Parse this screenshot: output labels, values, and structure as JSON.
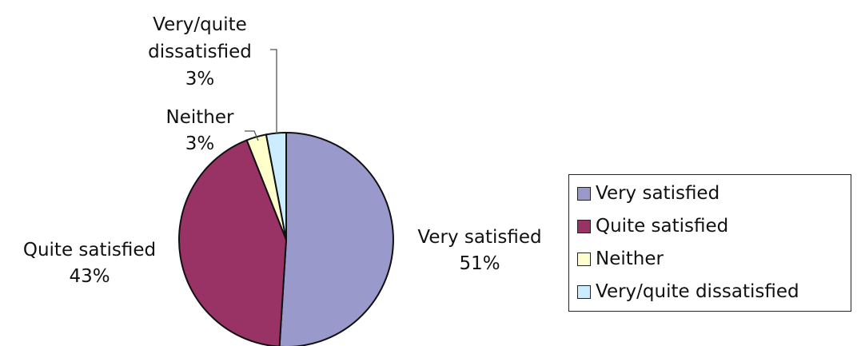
{
  "chart_data": {
    "type": "pie",
    "title": "",
    "categories": [
      "Very satisfied",
      "Quite satisfied",
      "Neither",
      "Very/quite dissatisfied"
    ],
    "values": [
      51,
      43,
      3,
      3
    ],
    "value_labels": [
      "51%",
      "43%",
      "3%",
      "3%"
    ],
    "colors": [
      "#9999cc",
      "#993366",
      "#ffffcc",
      "#ccecff"
    ],
    "slice_labels": [
      {
        "lines": [
          "Very satisfied",
          "51%"
        ]
      },
      {
        "lines": [
          "Quite satisfied",
          "43%"
        ]
      },
      {
        "lines": [
          "Neither",
          "3%"
        ]
      },
      {
        "lines": [
          "Very/quite",
          "dissatisfied",
          "3%"
        ]
      }
    ],
    "legend": {
      "placement": "right",
      "entries": [
        "Very satisfied",
        "Quite satisfied",
        "Neither",
        "Very/quite dissatisfied"
      ]
    }
  }
}
